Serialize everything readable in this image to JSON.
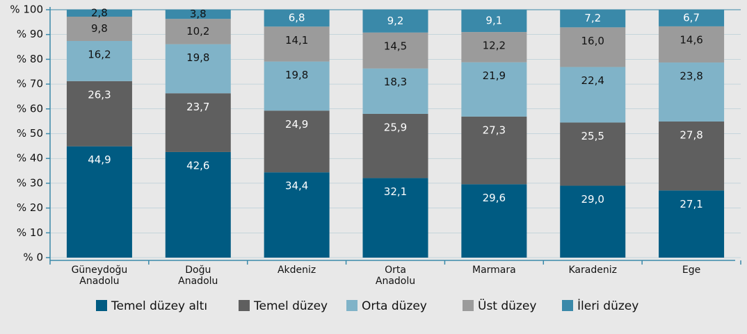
{
  "chart_data": {
    "type": "stacked_bar",
    "categories": [
      "Güneydoğu Anadolu",
      "Doğu Anadolu",
      "Akdeniz",
      "Orta Anadolu",
      "Marmara",
      "Karadeniz",
      "Ege"
    ],
    "series": [
      {
        "name": "Temel düzey altı",
        "color": "#005b82",
        "values": [
          44.9,
          42.6,
          34.4,
          32.1,
          29.6,
          29.0,
          27.1
        ],
        "value_labels": [
          "44,9",
          "42,6",
          "34,4",
          "32,1",
          "29,6",
          "29,0",
          "27,1"
        ]
      },
      {
        "name": "Temel düzey",
        "color": "#5f5f5f",
        "values": [
          26.3,
          23.7,
          24.9,
          25.9,
          27.3,
          25.5,
          27.8
        ],
        "value_labels": [
          "26,3",
          "23,7",
          "24,9",
          "25,9",
          "27,3",
          "25,5",
          "27,8"
        ]
      },
      {
        "name": "Orta düzey",
        "color": "#80b3c8",
        "values": [
          16.2,
          19.8,
          19.8,
          18.3,
          21.9,
          22.4,
          23.8
        ],
        "value_labels": [
          "16,2",
          "19,8",
          "19,8",
          "18,3",
          "21,9",
          "22,4",
          "23,8"
        ]
      },
      {
        "name": "Üst düzey",
        "color": "#9b9b9b",
        "values": [
          9.8,
          10.2,
          14.1,
          14.5,
          12.2,
          16.0,
          14.6
        ],
        "value_labels": [
          "9,8",
          "10,2",
          "14,1",
          "14,5",
          "12,2",
          "16,0",
          "14,6"
        ]
      },
      {
        "name": "İleri düzey",
        "color": "#3a89a9",
        "values": [
          2.8,
          3.8,
          6.8,
          9.2,
          9.1,
          7.2,
          6.7
        ],
        "value_labels": [
          "2,8",
          "3,8",
          "6,8",
          "9,2",
          "9,1",
          "7,2",
          "6,7"
        ]
      }
    ],
    "ylim": [
      0,
      100
    ],
    "yticks": [
      {
        "value": 0,
        "label": "% 0"
      },
      {
        "value": 10,
        "label": "% 10"
      },
      {
        "value": 20,
        "label": "% 20"
      },
      {
        "value": 30,
        "label": "% 30"
      },
      {
        "value": 40,
        "label": "% 40"
      },
      {
        "value": 50,
        "label": "% 50"
      },
      {
        "value": 60,
        "label": "% 60"
      },
      {
        "value": 70,
        "label": "% 70"
      },
      {
        "value": 80,
        "label": "% 80"
      },
      {
        "value": 90,
        "label": "% 90"
      },
      {
        "value": 100,
        "label": "% 100"
      }
    ],
    "grid": true,
    "legend": "bottom"
  }
}
